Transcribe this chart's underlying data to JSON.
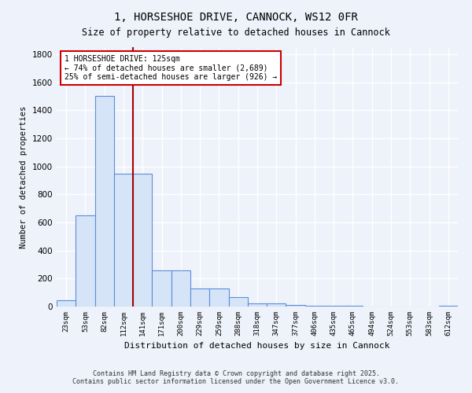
{
  "title": "1, HORSESHOE DRIVE, CANNOCK, WS12 0FR",
  "subtitle": "Size of property relative to detached houses in Cannock",
  "xlabel": "Distribution of detached houses by size in Cannock",
  "ylabel": "Number of detached properties",
  "categories": [
    "23sqm",
    "53sqm",
    "82sqm",
    "112sqm",
    "141sqm",
    "171sqm",
    "200sqm",
    "229sqm",
    "259sqm",
    "288sqm",
    "318sqm",
    "347sqm",
    "377sqm",
    "406sqm",
    "435sqm",
    "465sqm",
    "494sqm",
    "524sqm",
    "553sqm",
    "583sqm",
    "612sqm"
  ],
  "bar_heights": [
    45,
    650,
    1500,
    950,
    950,
    260,
    260,
    130,
    130,
    65,
    20,
    20,
    10,
    5,
    3,
    3,
    2,
    2,
    2,
    2,
    5
  ],
  "bar_color": "#d6e4f7",
  "bar_edge_color": "#5b8dd9",
  "red_line_index": 3.5,
  "property_line_color": "#aa0000",
  "annotation_text": "1 HORSESHOE DRIVE: 125sqm\n← 74% of detached houses are smaller (2,689)\n25% of semi-detached houses are larger (926) →",
  "annotation_box_color": "#ffffff",
  "annotation_box_edge_color": "#cc0000",
  "ylim": [
    0,
    1850
  ],
  "yticks": [
    0,
    200,
    400,
    600,
    800,
    1000,
    1200,
    1400,
    1600,
    1800
  ],
  "footnote1": "Contains HM Land Registry data © Crown copyright and database right 2025.",
  "footnote2": "Contains public sector information licensed under the Open Government Licence v3.0.",
  "bg_color": "#eef2fb",
  "plot_bg_color": "#eef2fb",
  "grid_color": "#ffffff"
}
